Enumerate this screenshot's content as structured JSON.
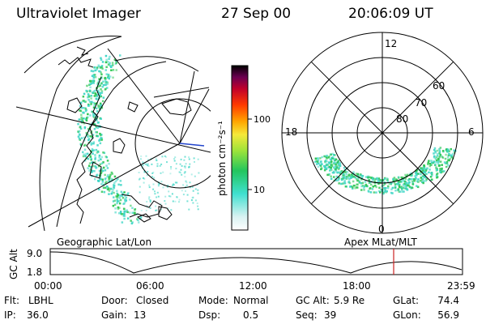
{
  "header": {
    "title": "Ultraviolet Imager",
    "date": "27 Sep 00",
    "time": "20:06:09 UT"
  },
  "colorbar": {
    "label": "photon cm⁻²s⁻¹",
    "ticks": [
      "100",
      "10"
    ]
  },
  "polar": {
    "mlt_labels": [
      "12",
      "18",
      "6",
      "0"
    ],
    "lat_labels": [
      "60",
      "70",
      "80"
    ]
  },
  "map_caption": "Geographic Lat/Lon",
  "polar_caption": "Apex MLat/MLT",
  "altitude_panel": {
    "axis_label": "GC Alt",
    "y_ticks": [
      "9.0",
      "1.8"
    ],
    "x_ticks": [
      "00:00",
      "06:00",
      "12:00",
      "18:00",
      "23:59"
    ],
    "current_marker_time": "20:06"
  },
  "footer": {
    "flt": {
      "label": "Flt:",
      "value": "LBHL"
    },
    "ip": {
      "label": "IP:",
      "value": "36.0"
    },
    "door": {
      "label": "Door:",
      "value": "Closed"
    },
    "gain": {
      "label": "Gain:",
      "value": "13"
    },
    "mode": {
      "label": "Mode:",
      "value": "Normal"
    },
    "dsp": {
      "label": "Dsp:",
      "value": "0.5"
    },
    "gcalt": {
      "label": "GC Alt:",
      "value": "5.9 Re"
    },
    "seq": {
      "label": "Seq:",
      "value": "39"
    },
    "glat": {
      "label": "GLat:",
      "value": "74.4"
    },
    "glon": {
      "label": "GLon:",
      "value": "56.9"
    }
  },
  "colors": {
    "colorbar_stops": [
      "#ffffff",
      "#d9f2f2",
      "#40e0d0",
      "#22c55e",
      "#9be33a",
      "#f5e93a",
      "#ffa500",
      "#ff3b00",
      "#c0002a",
      "#8a0050",
      "#2b004a",
      "#000000"
    ],
    "aurora_core": "#2dc653",
    "aurora_edge": "#3fd6c6",
    "orbit_marker": "#cc2222",
    "nadir_line": "#2244cc"
  }
}
